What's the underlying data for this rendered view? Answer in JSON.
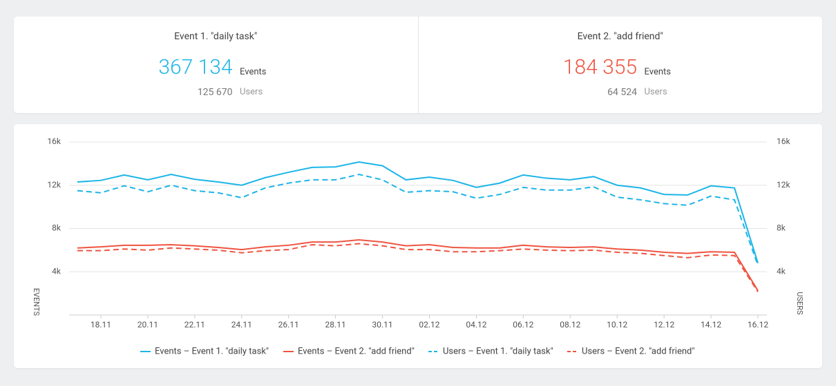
{
  "cards": [
    {
      "title": "Event 1. \"daily task\"",
      "events": "367 134",
      "events_label": "Events",
      "users": "125 670",
      "users_label": "Users",
      "color": "#1cb5e8"
    },
    {
      "title": "Event 2. \"add friend\"",
      "events": "184 355",
      "events_label": "Events",
      "users": "64 524",
      "users_label": "Users",
      "color": "#ef5340"
    }
  ],
  "chart_data": {
    "type": "line",
    "categories": [
      null,
      "18.11",
      null,
      "20.11",
      null,
      "22.11",
      null,
      "24.11",
      null,
      "26.11",
      null,
      "28.11",
      null,
      "30.11",
      null,
      "02.12",
      null,
      "04.12",
      null,
      "06.12",
      null,
      "08.12",
      null,
      "10.12",
      null,
      "12.12",
      null,
      "14.12",
      null,
      "16.12"
    ],
    "ylabel": "EVENTS",
    "y2label": "USERS",
    "ylim": [
      0,
      16000
    ],
    "yticks": [
      {
        "value": 4000,
        "label": "4k"
      },
      {
        "value": 8000,
        "label": "8k"
      },
      {
        "value": 12000,
        "label": "12k"
      },
      {
        "value": 16000,
        "label": "16k"
      }
    ],
    "y2lim": [
      0,
      16000
    ],
    "y2ticks": [
      {
        "value": 4000,
        "label": "4k"
      },
      {
        "value": 8000,
        "label": "8k"
      },
      {
        "value": 12000,
        "label": "12k"
      },
      {
        "value": 16000,
        "label": "16k"
      }
    ],
    "grid": true,
    "series": [
      {
        "name": "Events – Event 1. \"daily task\"",
        "color": "#1cb5e8",
        "dashed": false,
        "values": [
          12300,
          12450,
          12950,
          12500,
          13000,
          12550,
          12300,
          12000,
          12700,
          13200,
          13650,
          13700,
          14150,
          13800,
          12500,
          12750,
          12450,
          11800,
          12200,
          12950,
          12650,
          12500,
          12800,
          12000,
          11750,
          11150,
          11100,
          11950,
          11750,
          4800
        ]
      },
      {
        "name": "Events – Event 2. \"add friend\"",
        "color": "#ef5340",
        "dashed": false,
        "values": [
          6200,
          6300,
          6450,
          6450,
          6500,
          6400,
          6250,
          6050,
          6300,
          6450,
          6750,
          6750,
          6950,
          6750,
          6400,
          6500,
          6250,
          6200,
          6200,
          6450,
          6300,
          6250,
          6300,
          6100,
          6000,
          5800,
          5700,
          5850,
          5800,
          2250
        ]
      },
      {
        "name": "Users – Event 1. \"daily task\"",
        "color": "#1cb5e8",
        "dashed": true,
        "axis": "y2",
        "values": [
          11500,
          11300,
          11950,
          11400,
          12000,
          11500,
          11300,
          10850,
          11750,
          12200,
          12500,
          12500,
          13000,
          12500,
          11350,
          11500,
          11400,
          10800,
          11150,
          11800,
          11550,
          11550,
          11850,
          10900,
          10650,
          10300,
          10150,
          11000,
          10650,
          4600
        ]
      },
      {
        "name": "Users – Event 2. \"add friend\"",
        "color": "#ef5340",
        "dashed": true,
        "axis": "y2",
        "values": [
          5950,
          5950,
          6100,
          6000,
          6200,
          6100,
          6000,
          5750,
          5950,
          6050,
          6500,
          6400,
          6600,
          6400,
          6050,
          6050,
          5850,
          5850,
          5950,
          6100,
          6000,
          5950,
          6000,
          5800,
          5700,
          5500,
          5300,
          5550,
          5500,
          2150
        ]
      }
    ]
  }
}
